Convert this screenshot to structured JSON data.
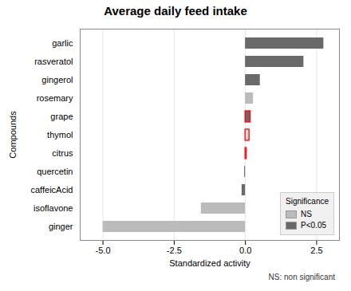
{
  "chart_data": {
    "type": "bar",
    "orientation": "horizontal",
    "title": "Average daily feed intake",
    "xlabel": "Standardized activity",
    "ylabel": "Compounds",
    "categories": [
      "garlic",
      "rasveratol",
      "gingerol",
      "rosemary",
      "grape",
      "thymol",
      "citrus",
      "quercetin",
      "caffeicAcid",
      "isoflavone",
      "ginger"
    ],
    "values": [
      2.75,
      2.05,
      0.52,
      0.28,
      0.18,
      0.14,
      0.04,
      -0.03,
      -0.12,
      -1.55,
      -5.0
    ],
    "colors": [
      "#696969",
      "#696969",
      "#696969",
      "#bbbbbb",
      "#696969",
      "#d8d8d8",
      "#d8d8d8",
      "#696969",
      "#696969",
      "#bbbbbb",
      "#bbbbbb"
    ],
    "outlined": [
      false,
      false,
      false,
      false,
      true,
      true,
      true,
      false,
      false,
      false,
      false
    ],
    "outline_color": "red",
    "xlim": [
      -5.8,
      3.3
    ],
    "xticks": [
      {
        "value": -5.0,
        "label": "-5.0"
      },
      -2.5,
      {
        "value": 0.0,
        "label": "0.0"
      },
      2.5
    ],
    "grid": true,
    "legend": "lower right",
    "legend_title": "Significance",
    "legend_entries": [
      {
        "name": "NS",
        "color": "#bbbbbb"
      },
      {
        "name": "P<0.05",
        "color": "#696969"
      }
    ],
    "annotation": "NS: non significant"
  }
}
